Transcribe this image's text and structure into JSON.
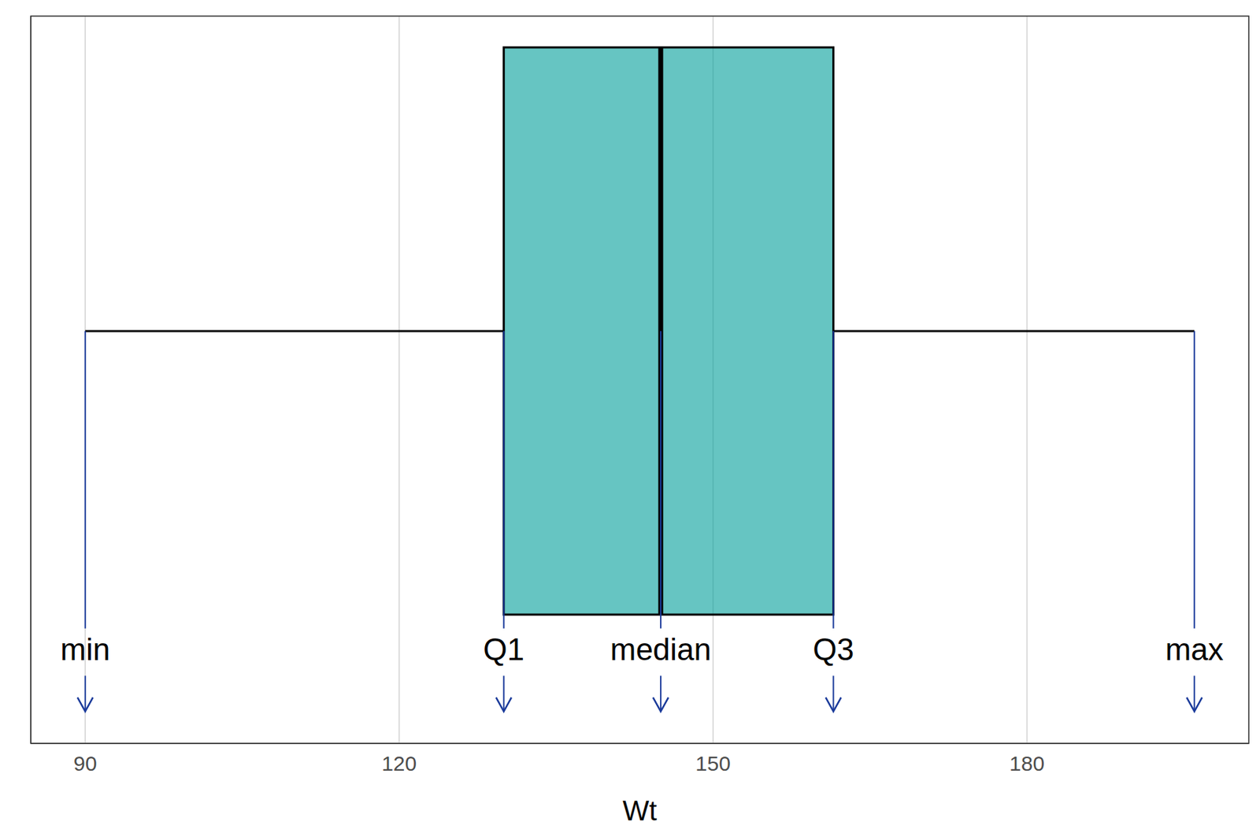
{
  "chart_data": {
    "type": "boxplot",
    "x_label": "Wt",
    "min": 90,
    "q1": 130,
    "median": 145,
    "q3": 161.5,
    "max": 196,
    "color": "#009e9a",
    "xlim": [
      84.8,
      201.2
    ],
    "xticks": [
      90,
      120,
      150,
      180
    ],
    "ylim": [
      0.458,
      1.418
    ],
    "yticks": [
      0.5,
      0.75,
      1,
      1.25
    ],
    "grid": true,
    "tick_labels": "x",
    "annotations": [
      {
        "text": "min",
        "x": 90,
        "color": "#1a3a9a"
      },
      {
        "text": "Q1",
        "x": 130,
        "color": "#1a3a9a"
      },
      {
        "text": "median",
        "x": 145,
        "color": "#1a3a9a"
      },
      {
        "text": "Q3",
        "x": 161.5,
        "color": "#1a3a9a"
      },
      {
        "text": "max",
        "x": 196,
        "color": "#1a3a9a"
      }
    ]
  }
}
